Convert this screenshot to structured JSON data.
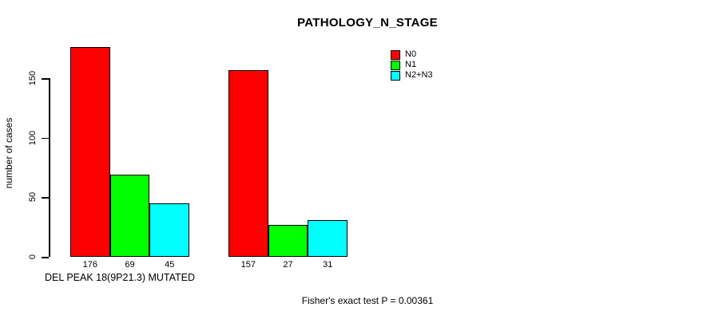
{
  "title": "PATHOLOGY_N_STAGE",
  "footer": "Fisher's exact test P = 0.00361",
  "chart_data": {
    "type": "bar",
    "title": "PATHOLOGY_N_STAGE",
    "xlabel": "",
    "ylabel": "number of cases",
    "ylim": [
      0,
      180
    ],
    "yticks": [
      0,
      50,
      100,
      150
    ],
    "grid": false,
    "legend_position": "top-right",
    "categories": [
      "DEL PEAK 18(9P21.3) MUTATED",
      ""
    ],
    "groups": [
      {
        "label": "DEL PEAK 18(9P21.3) MUTATED",
        "values": [
          176,
          69,
          45
        ]
      },
      {
        "label": "",
        "values": [
          157,
          27,
          31
        ]
      }
    ],
    "series": [
      {
        "name": "N0",
        "color": "#ff0000"
      },
      {
        "name": "N1",
        "color": "#00ff00"
      },
      {
        "name": "N2+N3",
        "color": "#00ffff"
      }
    ],
    "annotation": "Fisher's exact test P = 0.00361"
  }
}
